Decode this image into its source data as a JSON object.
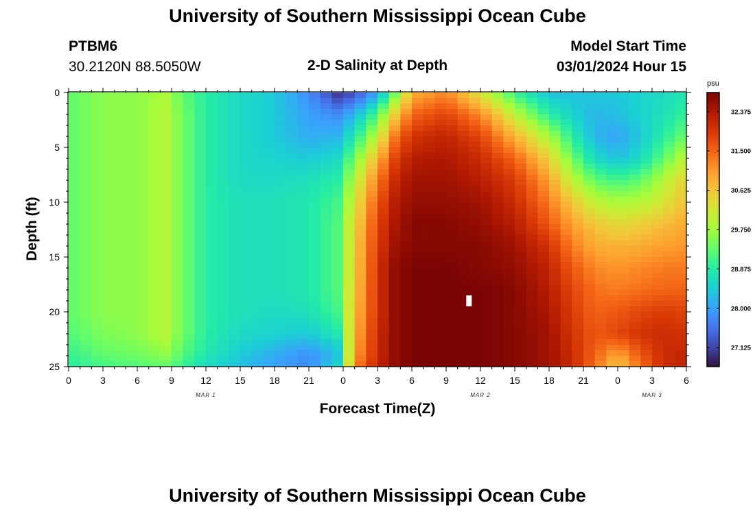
{
  "page": {
    "title_top": "University of Southern Mississippi Ocean Cube",
    "title_bottom": "University of Southern Mississippi Ocean Cube",
    "station_id": "PTBM6",
    "station_coords": "30.2120N  88.5050W",
    "plot_title": "2-D Salinity at Depth",
    "model_start_label": "Model Start Time",
    "model_start_value": "03/01/2024 Hour 15"
  },
  "chart_data": {
    "type": "heatmap",
    "title": "2-D Salinity at Depth",
    "xlabel": "Forecast Time(Z)",
    "ylabel": "Depth (ft)",
    "x_ticks": [
      "0",
      "3",
      "6",
      "9",
      "12",
      "15",
      "18",
      "21",
      "0",
      "3",
      "6",
      "9",
      "12",
      "15",
      "18",
      "21",
      "0",
      "3",
      "6"
    ],
    "x_range_hours": [
      0,
      54
    ],
    "day_labels": [
      {
        "label": "MAR 1",
        "hour": 12
      },
      {
        "label": "MAR 2",
        "hour": 36
      },
      {
        "label": "MAR 3",
        "hour": 51
      }
    ],
    "y_ticks": [
      "0",
      "5",
      "10",
      "15",
      "20",
      "25"
    ],
    "ylim": [
      0,
      25
    ],
    "y_inverted": true,
    "colorbar": {
      "unit": "psu",
      "min": 26.7,
      "max": 32.8,
      "ticks": [
        "32.375",
        "31.500",
        "30.625",
        "29.750",
        "28.875",
        "28.000",
        "27.125"
      ],
      "colormap": [
        "#30123b",
        "#4145ab",
        "#4675ed",
        "#39a2fc",
        "#1bcfd4",
        "#24eca6",
        "#61fc6c",
        "#a4fc3b",
        "#d1e834",
        "#f3c63a",
        "#fe9b2d",
        "#f36315",
        "#d93806",
        "#b11901",
        "#7a0403"
      ]
    },
    "salinity_samples": {
      "hours": [
        0,
        3,
        6,
        8.5,
        10,
        12,
        15,
        18,
        21,
        23.5,
        25,
        27,
        28.5,
        30,
        33,
        36,
        39,
        42,
        44,
        46,
        48,
        50,
        52,
        54
      ],
      "depths_ft": [
        0,
        2,
        4,
        6,
        8,
        10,
        12,
        14,
        16,
        18,
        20,
        22,
        24,
        25
      ],
      "values_psu": [
        [
          29.3,
          29.6,
          29.6,
          29.8,
          29.3,
          28.9,
          28.6,
          28.4,
          27.8,
          27.0,
          27.2,
          28.0,
          29.3,
          30.8,
          31.2,
          30.2,
          29.0,
          28.3,
          28.3,
          28.4,
          28.4,
          28.5,
          28.6,
          28.8
        ],
        [
          29.3,
          29.6,
          29.6,
          29.9,
          29.4,
          28.9,
          28.6,
          28.4,
          28.0,
          27.8,
          28.2,
          29.2,
          30.5,
          31.5,
          31.8,
          31.2,
          30.0,
          28.9,
          28.5,
          28.2,
          28.3,
          28.5,
          28.7,
          29.0
        ],
        [
          29.3,
          29.6,
          29.6,
          29.9,
          29.4,
          28.9,
          28.6,
          28.4,
          28.1,
          28.2,
          28.8,
          30.0,
          31.3,
          32.0,
          32.2,
          31.8,
          30.8,
          29.8,
          28.9,
          28.2,
          28.0,
          28.4,
          28.9,
          29.4
        ],
        [
          29.3,
          29.6,
          29.6,
          29.9,
          29.4,
          28.9,
          28.6,
          28.5,
          28.4,
          28.6,
          29.4,
          30.8,
          31.8,
          32.3,
          32.4,
          32.1,
          31.5,
          30.5,
          29.4,
          28.6,
          28.3,
          28.6,
          29.3,
          30.0
        ],
        [
          29.3,
          29.6,
          29.6,
          29.9,
          29.4,
          28.9,
          28.6,
          28.6,
          28.7,
          28.9,
          29.9,
          31.3,
          32.1,
          32.5,
          32.5,
          32.3,
          31.9,
          31.0,
          30.0,
          29.3,
          29.1,
          29.3,
          29.9,
          30.5
        ],
        [
          29.3,
          29.6,
          29.6,
          29.9,
          29.4,
          28.9,
          28.7,
          28.7,
          28.8,
          29.1,
          30.2,
          31.6,
          32.3,
          32.6,
          32.6,
          32.5,
          32.1,
          31.3,
          30.6,
          30.0,
          29.8,
          29.9,
          30.2,
          30.7
        ],
        [
          29.3,
          29.6,
          29.6,
          29.9,
          29.4,
          28.9,
          28.7,
          28.7,
          28.8,
          29.2,
          30.4,
          31.8,
          32.4,
          32.7,
          32.7,
          32.6,
          32.3,
          31.6,
          31.0,
          30.6,
          30.4,
          30.5,
          30.7,
          30.9
        ],
        [
          29.3,
          29.6,
          29.6,
          29.9,
          29.4,
          28.9,
          28.7,
          28.7,
          28.8,
          29.2,
          30.5,
          31.9,
          32.5,
          32.7,
          32.7,
          32.7,
          32.5,
          32.0,
          31.3,
          30.9,
          30.8,
          30.9,
          31.0,
          31.1
        ],
        [
          29.3,
          29.6,
          29.6,
          29.9,
          29.4,
          28.9,
          28.7,
          28.7,
          28.8,
          29.2,
          30.5,
          32.0,
          32.6,
          32.8,
          32.8,
          32.7,
          32.6,
          32.2,
          31.6,
          31.2,
          31.1,
          31.2,
          31.3,
          31.3
        ],
        [
          29.3,
          29.6,
          29.6,
          29.9,
          29.4,
          28.9,
          28.7,
          28.7,
          28.8,
          29.2,
          30.6,
          32.0,
          32.6,
          32.8,
          32.8,
          32.8,
          32.7,
          32.3,
          31.8,
          31.4,
          31.3,
          31.4,
          31.5,
          31.5
        ],
        [
          29.3,
          29.6,
          29.6,
          29.9,
          29.4,
          28.9,
          28.7,
          28.6,
          28.7,
          29.1,
          30.7,
          32.0,
          32.6,
          32.8,
          32.8,
          32.8,
          32.7,
          32.4,
          31.9,
          31.5,
          31.6,
          31.8,
          31.9,
          31.8
        ],
        [
          29.2,
          29.5,
          29.6,
          29.9,
          29.4,
          28.9,
          28.6,
          28.5,
          28.4,
          28.8,
          30.8,
          32.1,
          32.6,
          32.8,
          32.8,
          32.8,
          32.7,
          32.5,
          32.0,
          31.6,
          31.8,
          32.0,
          32.1,
          32.0
        ],
        [
          29.0,
          29.3,
          29.4,
          29.6,
          29.2,
          28.8,
          28.4,
          28.1,
          27.8,
          28.3,
          31.0,
          32.1,
          32.6,
          32.8,
          32.8,
          32.8,
          32.7,
          32.5,
          32.1,
          31.5,
          30.9,
          31.6,
          32.1,
          32.2
        ],
        [
          28.9,
          29.1,
          29.2,
          29.3,
          29.0,
          28.6,
          28.3,
          28.0,
          27.8,
          28.6,
          31.2,
          32.2,
          32.6,
          32.8,
          32.8,
          32.8,
          32.7,
          32.5,
          32.1,
          31.4,
          30.6,
          31.4,
          32.1,
          32.2
        ]
      ]
    },
    "masked_cell": {
      "hour": 35,
      "depth_ft": 19
    }
  }
}
